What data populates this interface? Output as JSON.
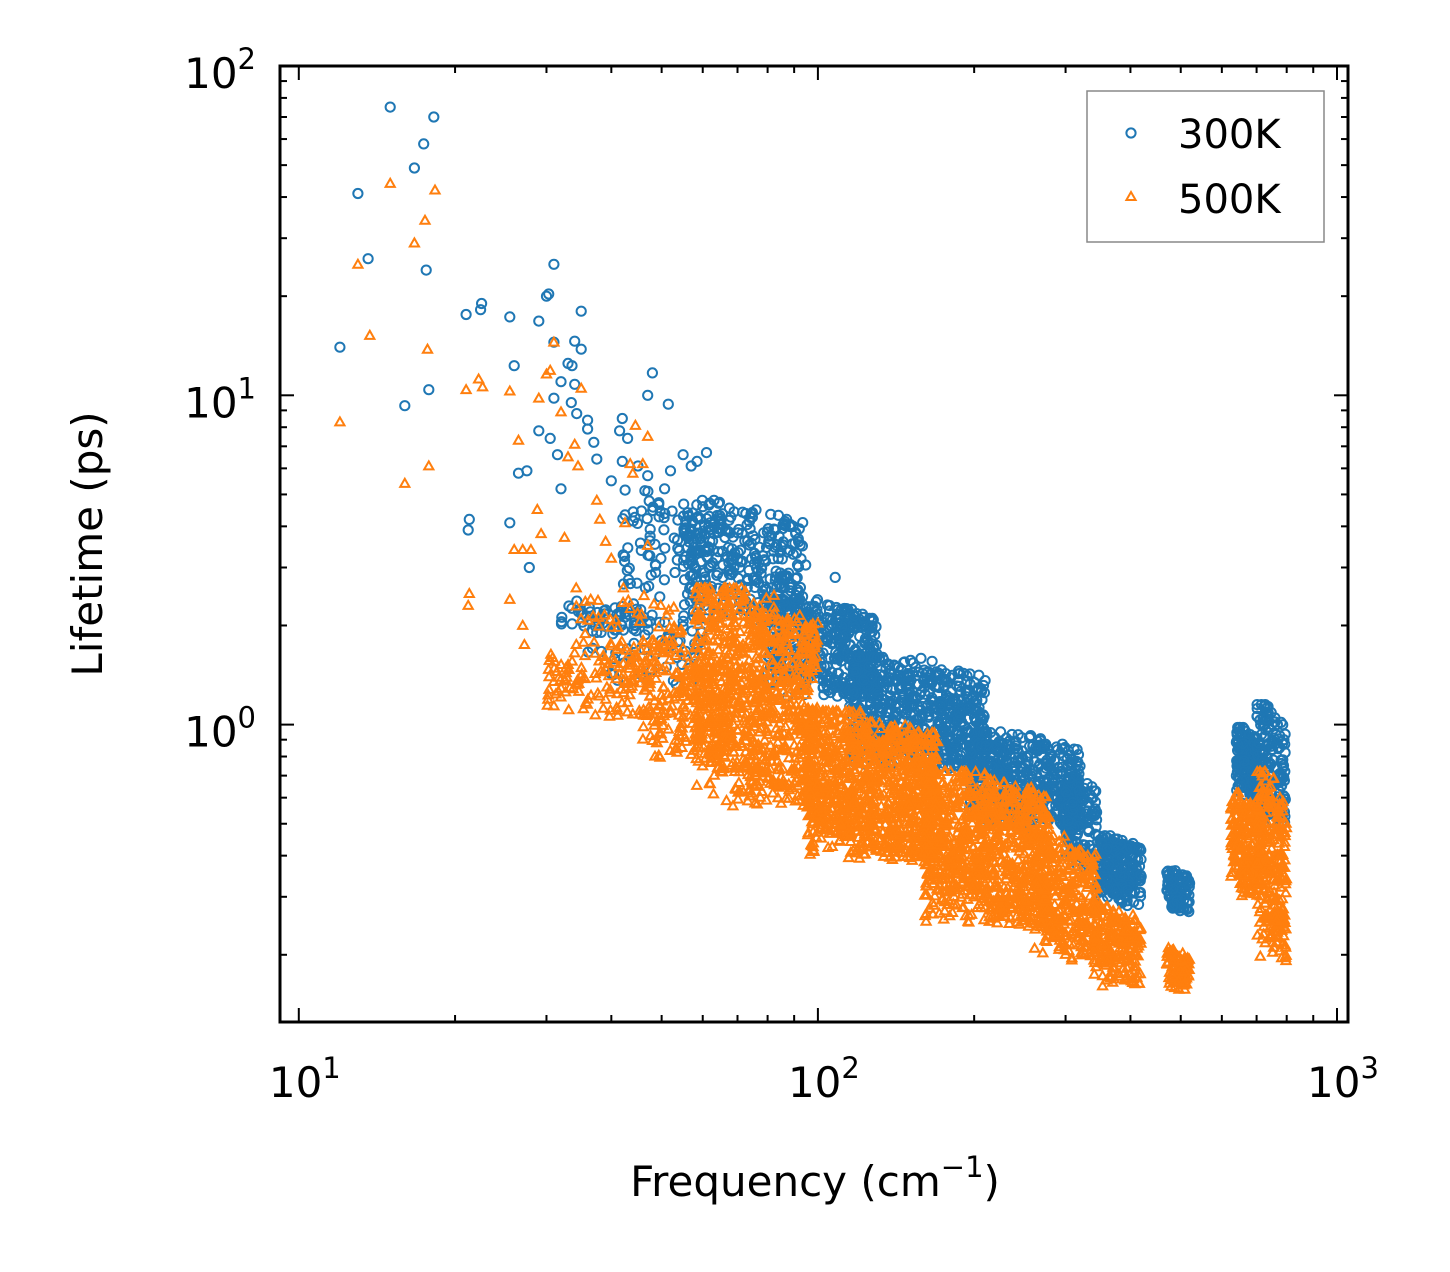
{
  "chart_data": {
    "type": "scatter",
    "title": "",
    "xlabel": "Frequency (cm",
    "xlabel_sup": "−1",
    "xlabel_close": ")",
    "ylabel": "Lifetime (ps)",
    "xscale": "log",
    "yscale": "log",
    "xlim": [
      9.2,
      1050
    ],
    "ylim": [
      0.125,
      100
    ],
    "x_ticks": [
      {
        "value": 10,
        "base": "10",
        "exp": "1"
      },
      {
        "value": 100,
        "base": "10",
        "exp": "2"
      },
      {
        "value": 1000,
        "base": "10",
        "exp": "3"
      }
    ],
    "y_ticks": [
      {
        "value": 1,
        "base": "10",
        "exp": "0"
      },
      {
        "value": 10,
        "base": "10",
        "exp": "1"
      },
      {
        "value": 100,
        "base": "10",
        "exp": "2"
      }
    ],
    "legend": {
      "position": "top-right"
    },
    "series": [
      {
        "name": "300K",
        "marker": "circle",
        "color": "#1f77b4",
        "points": [
          [
            15,
            75
          ],
          [
            18.2,
            70
          ],
          [
            17.4,
            58
          ],
          [
            16.7,
            49
          ],
          [
            13,
            41
          ],
          [
            13.6,
            26
          ],
          [
            17.6,
            24
          ],
          [
            12,
            14
          ],
          [
            16,
            9.3
          ],
          [
            17.8,
            10.4
          ],
          [
            22.5,
            19
          ],
          [
            22.4,
            18.2
          ],
          [
            21,
            17.6
          ],
          [
            25.5,
            17.3
          ],
          [
            29,
            16.8
          ],
          [
            30,
            20
          ],
          [
            30.3,
            20.3
          ],
          [
            31,
            25
          ],
          [
            35,
            18
          ],
          [
            31,
            14.5
          ],
          [
            34,
            14.6
          ],
          [
            35,
            13.8
          ],
          [
            33,
            12.5
          ],
          [
            33.6,
            12.3
          ],
          [
            32,
            11
          ],
          [
            34,
            10.8
          ],
          [
            31,
            9.8
          ],
          [
            33.5,
            9.5
          ],
          [
            34.3,
            8.8
          ],
          [
            36,
            8.4
          ],
          [
            29,
            7.8
          ],
          [
            30.5,
            7.4
          ],
          [
            31.5,
            6.6
          ],
          [
            37,
            7.2
          ],
          [
            36,
            7.9
          ],
          [
            26,
            12.3
          ],
          [
            26.5,
            5.8
          ],
          [
            27.5,
            5.9
          ],
          [
            32,
            5.2
          ],
          [
            25.5,
            4.1
          ],
          [
            21.3,
            4.2
          ],
          [
            21.2,
            3.9
          ],
          [
            27.8,
            3.0
          ],
          [
            48,
            11.7
          ],
          [
            47,
            10
          ],
          [
            51.5,
            9.4
          ],
          [
            42,
            8.5
          ],
          [
            41.5,
            7.8
          ],
          [
            43,
            7.4
          ],
          [
            55,
            6.6
          ],
          [
            57,
            6.1
          ],
          [
            58.5,
            6.3
          ],
          [
            61,
            6.7
          ],
          [
            45,
            6.1
          ],
          [
            42,
            6.3
          ],
          [
            37.5,
            6.4
          ],
          [
            40,
            5.5
          ],
          [
            47,
            5.7
          ],
          [
            52,
            5.9
          ],
          [
            108,
            2.8
          ]
        ],
        "clusters": [
          {
            "x": [
              32,
              48
            ],
            "y": [
              1.85,
              2.4
            ],
            "n": 55
          },
          {
            "x": [
              36,
              60
            ],
            "y": [
              1.3,
              2.3
            ],
            "n": 60
          },
          {
            "x": [
              42,
              62
            ],
            "y": [
              2.3,
              5.2
            ],
            "n": 90
          },
          {
            "x": [
              55,
              95
            ],
            "y": [
              2.0,
              4.8
            ],
            "n": 320
          },
          {
            "x": [
              80,
              130
            ],
            "y": [
              1.2,
              2.4
            ],
            "n": 420
          },
          {
            "x": [
              115,
              210
            ],
            "y": [
              0.72,
              1.6
            ],
            "n": 650
          },
          {
            "x": [
              195,
              320
            ],
            "y": [
              0.48,
              0.95
            ],
            "n": 520
          },
          {
            "x": [
              300,
              345
            ],
            "y": [
              0.36,
              0.7
            ],
            "n": 160
          },
          {
            "x": [
              345,
              420
            ],
            "y": [
              0.28,
              0.46
            ],
            "n": 240
          },
          {
            "x": [
              470,
              520
            ],
            "y": [
              0.27,
              0.36
            ],
            "n": 110
          },
          {
            "x": [
              640,
              700
            ],
            "y": [
              0.6,
              0.98
            ],
            "n": 160
          },
          {
            "x": [
              700,
              795
            ],
            "y": [
              0.48,
              1.15
            ],
            "n": 170
          }
        ]
      },
      {
        "name": "500K",
        "marker": "triangle",
        "color": "#ff7f0e",
        "points": [
          [
            15,
            44
          ],
          [
            18.3,
            42
          ],
          [
            17.5,
            34
          ],
          [
            16.7,
            29
          ],
          [
            13,
            25
          ],
          [
            13.7,
            15.2
          ],
          [
            17.7,
            13.8
          ],
          [
            12,
            8.3
          ],
          [
            16,
            5.4
          ],
          [
            17.8,
            6.1
          ],
          [
            21,
            10.4
          ],
          [
            22.2,
            11.2
          ],
          [
            22.6,
            10.6
          ],
          [
            25.5,
            10.3
          ],
          [
            30,
            11.6
          ],
          [
            30.5,
            11.9
          ],
          [
            31,
            14.5
          ],
          [
            35,
            10.5
          ],
          [
            29,
            9.8
          ],
          [
            32,
            8.9
          ],
          [
            34,
            7.1
          ],
          [
            33,
            6.5
          ],
          [
            34.5,
            6.1
          ],
          [
            26.5,
            7.3
          ],
          [
            27,
            3.4
          ],
          [
            26,
            3.4
          ],
          [
            28,
            3.4
          ],
          [
            28.8,
            4.5
          ],
          [
            29.3,
            3.8
          ],
          [
            32.5,
            3.7
          ],
          [
            21.3,
            2.5
          ],
          [
            21.2,
            2.3
          ],
          [
            25.5,
            2.4
          ],
          [
            27,
            2.0
          ],
          [
            27.2,
            1.75
          ],
          [
            37.5,
            4.8
          ],
          [
            39,
            3.6
          ],
          [
            40,
            3.2
          ],
          [
            42.5,
            4.1
          ],
          [
            47,
            3.5
          ],
          [
            38,
            4.2
          ],
          [
            44,
            5.8
          ],
          [
            46,
            6.2
          ],
          [
            47,
            7.5
          ],
          [
            44.5,
            8.1
          ],
          [
            43.5,
            6.2
          ]
        ],
        "clusters": [
          {
            "x": [
              30,
              48
            ],
            "y": [
              1.05,
              1.65
            ],
            "n": 110
          },
          {
            "x": [
              34,
              55
            ],
            "y": [
              1.35,
              2.6
            ],
            "n": 70
          },
          {
            "x": [
              46,
              68
            ],
            "y": [
              0.72,
              1.8
            ],
            "n": 220
          },
          {
            "x": [
              58,
              100
            ],
            "y": [
              0.55,
              2.6
            ],
            "n": 900
          },
          {
            "x": [
              95,
              170
            ],
            "y": [
              0.38,
              1.1
            ],
            "n": 1000
          },
          {
            "x": [
              160,
              280
            ],
            "y": [
              0.24,
              0.72
            ],
            "n": 900
          },
          {
            "x": [
              260,
              345
            ],
            "y": [
              0.19,
              0.46
            ],
            "n": 320
          },
          {
            "x": [
              340,
              420
            ],
            "y": [
              0.16,
              0.28
            ],
            "n": 200
          },
          {
            "x": [
              470,
              520
            ],
            "y": [
              0.155,
              0.21
            ],
            "n": 100
          },
          {
            "x": [
              625,
              720
            ],
            "y": [
              0.3,
              0.62
            ],
            "n": 200
          },
          {
            "x": [
              700,
              800
            ],
            "y": [
              0.19,
              0.72
            ],
            "n": 260
          }
        ]
      }
    ]
  }
}
